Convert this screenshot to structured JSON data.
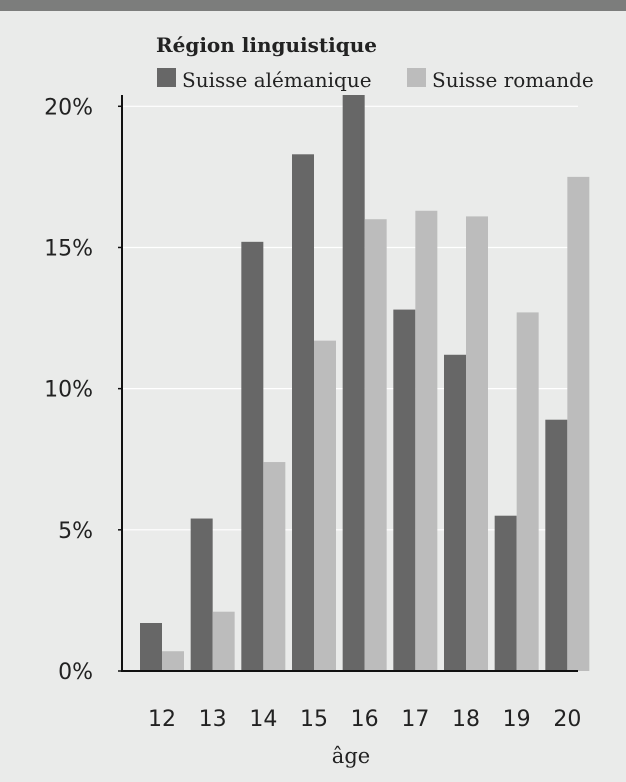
{
  "chart_data": {
    "type": "bar",
    "xlabel": "âge",
    "ylabel": "",
    "legend": {
      "title": "Région linguistique",
      "placement": "top-right"
    },
    "categories": [
      "12",
      "13",
      "14",
      "15",
      "16",
      "17",
      "18",
      "19",
      "20"
    ],
    "series": [
      {
        "name": "Suisse alémanique",
        "color": "#676767",
        "values": [
          1.7,
          5.4,
          15.2,
          18.3,
          20.4,
          12.8,
          11.2,
          5.5,
          8.9
        ]
      },
      {
        "name": "Suisse romande",
        "color": "#bcbcbc",
        "values": [
          0.7,
          2.1,
          7.4,
          11.7,
          16.0,
          16.3,
          16.1,
          12.7,
          17.5
        ]
      }
    ],
    "ylim": [
      0,
      20.4
    ],
    "yticks": [
      {
        "value": 0,
        "label": "0%"
      },
      {
        "value": 5,
        "label": "5%"
      },
      {
        "value": 10,
        "label": "10%"
      },
      {
        "value": 15,
        "label": "15%"
      },
      {
        "value": 20,
        "label": "20%"
      }
    ],
    "grid": true
  }
}
